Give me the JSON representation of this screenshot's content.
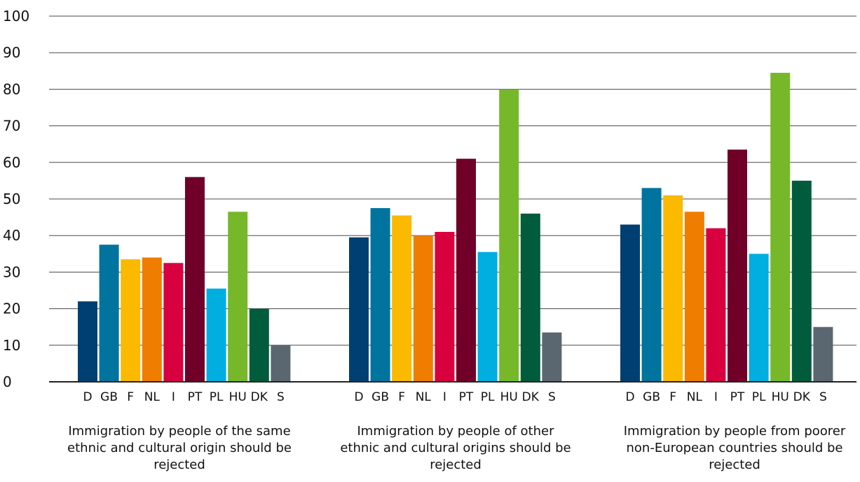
{
  "chart_data": {
    "type": "bar",
    "title": "",
    "xlabel": "",
    "ylabel": "",
    "ylim": [
      0,
      100
    ],
    "yticks": [
      0,
      10,
      20,
      30,
      40,
      50,
      60,
      70,
      80,
      90,
      100
    ],
    "grid": true,
    "countries": [
      "D",
      "GB",
      "F",
      "NL",
      "I",
      "PT",
      "PL",
      "HU",
      "DK",
      "S"
    ],
    "country_colors": [
      "#003f72",
      "#00739f",
      "#fbb900",
      "#ef7d00",
      "#d8003f",
      "#700027",
      "#00aee0",
      "#77b82a",
      "#005c3c",
      "#5b6770"
    ],
    "groups": [
      {
        "label": "Immigration by people of the same ethnic and cultural origin should be rejected",
        "values": [
          22,
          37.5,
          33.5,
          34,
          32.5,
          56,
          25.5,
          46.5,
          20,
          10
        ]
      },
      {
        "label": "Immigration by people of other ethnic and cultural origins should be rejected",
        "values": [
          39.5,
          47.5,
          45.5,
          40,
          41,
          61,
          35.5,
          80,
          46,
          13.5
        ]
      },
      {
        "label": "Immigration by people from poorer non-European countries should be rejected",
        "values": [
          43,
          53,
          51,
          46.5,
          42,
          63.5,
          35,
          84.5,
          55,
          15
        ]
      }
    ]
  }
}
